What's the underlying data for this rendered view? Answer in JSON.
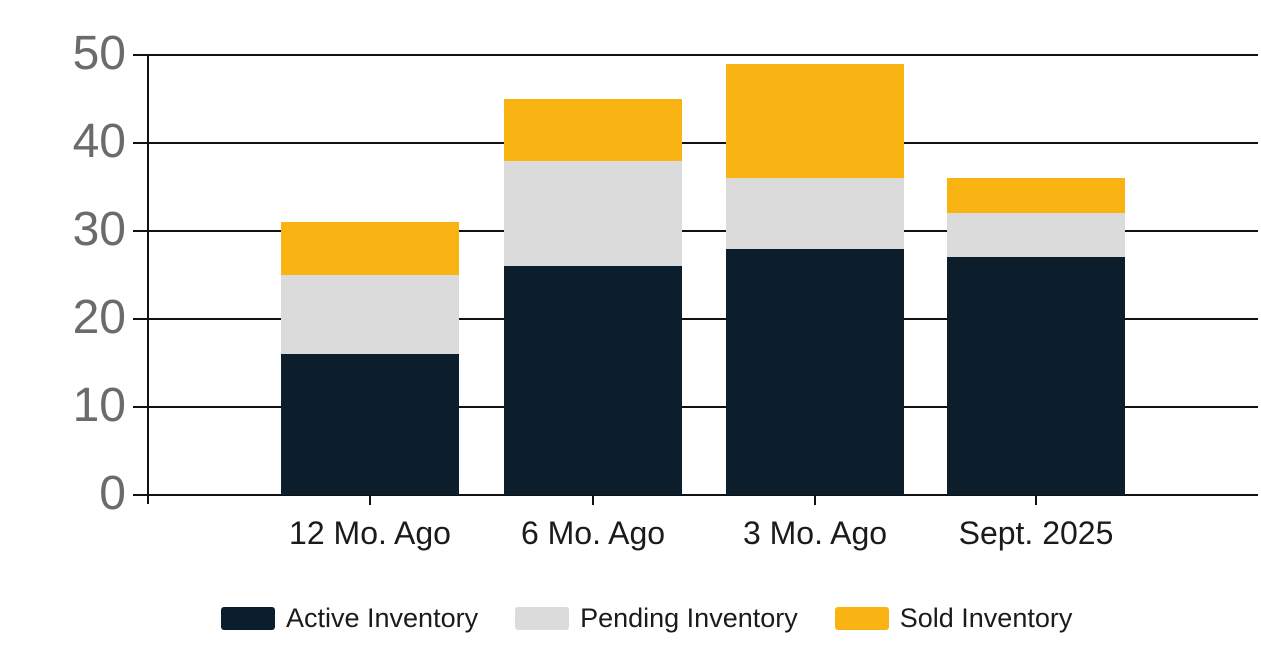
{
  "chart_data": {
    "type": "bar",
    "stacked": true,
    "title": "",
    "xlabel": "",
    "ylabel": "",
    "categories": [
      "12 Mo. Ago",
      "6 Mo. Ago",
      "3 Mo. Ago",
      "Sept. 2025"
    ],
    "series": [
      {
        "name": "Active Inventory",
        "color": "#0C1E2B",
        "values": [
          16,
          26,
          28,
          27
        ]
      },
      {
        "name": "Pending Inventory",
        "color": "#DBDBDB",
        "values": [
          9,
          12,
          8,
          5
        ]
      },
      {
        "name": "Sold Inventory",
        "color": "#F9B414",
        "values": [
          6,
          7,
          13,
          4
        ]
      }
    ],
    "stack_totals": [
      31,
      45,
      49,
      36
    ],
    "y_ticks": [
      0,
      10,
      20,
      30,
      40,
      50
    ],
    "ylim": [
      0,
      50
    ],
    "grid": true,
    "gridline_color": "#111111",
    "y_tick_label_color": "#6B6B6B",
    "x_tick_label_color": "#1B1B1B",
    "legend_position": "bottom"
  }
}
